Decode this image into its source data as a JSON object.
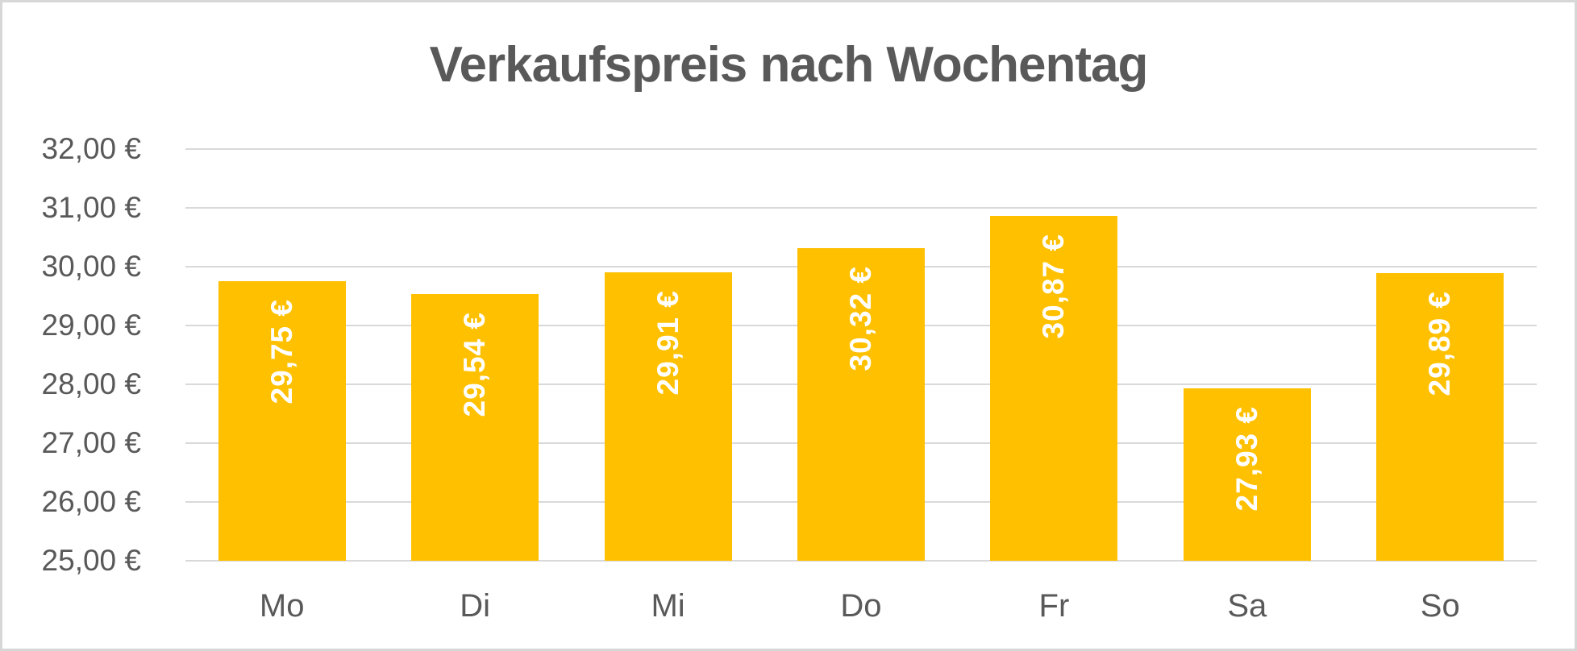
{
  "colors": {
    "bar": "#FFC000",
    "title_text": "#595959",
    "axis_text": "#595959",
    "gridline": "#D9D9D9",
    "bar_label_text": "#FFFFFF",
    "background": "#FFFFFF",
    "frame_border": "#D7D7D7"
  },
  "chart_data": {
    "type": "bar",
    "title": "Verkaufspreis nach Wochentag",
    "categories": [
      "Mo",
      "Di",
      "Mi",
      "Do",
      "Fr",
      "Sa",
      "So"
    ],
    "values": [
      29.75,
      29.54,
      29.91,
      30.32,
      30.87,
      27.93,
      29.89
    ],
    "data_labels": [
      "29,75 €",
      "29,54 €",
      "29,91 €",
      "30,32 €",
      "30,87 €",
      "27,93 €",
      "29,89 €"
    ],
    "data_label_position": "inside-end",
    "data_label_rotation": "rotated-90-reading-bottom-to-top",
    "xlabel": "",
    "ylabel": "",
    "ylim": [
      25,
      32
    ],
    "ytick_step": 1,
    "yticks": [
      {
        "value": 25,
        "label": "25,00 €"
      },
      {
        "value": 26,
        "label": "26,00 €"
      },
      {
        "value": 27,
        "label": "27,00 €"
      },
      {
        "value": 28,
        "label": "28,00 €"
      },
      {
        "value": 29,
        "label": "29,00 €"
      },
      {
        "value": 30,
        "label": "30,00 €"
      },
      {
        "value": 31,
        "label": "31,00 €"
      },
      {
        "value": 32,
        "label": "32,00 €"
      }
    ],
    "grid": "horizontal",
    "legend": "none",
    "bar_gap_ratio": 0.34
  }
}
